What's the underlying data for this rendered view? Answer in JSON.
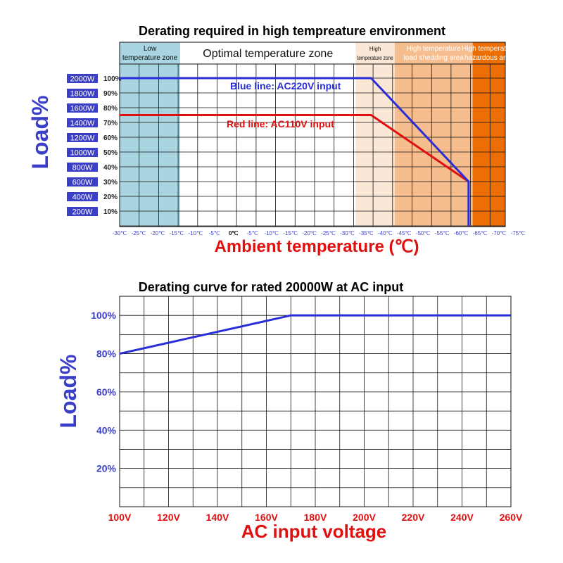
{
  "colors": {
    "blue": "#2a2ed6",
    "red": "#e01010",
    "low_zone": "#a9d5e0",
    "high_zone": "#fbe7d6",
    "shedding_zone": "#f6be8e",
    "hazard_zone": "#ec6e06",
    "watt_badge": "#3b3ec6",
    "ylabel": "#3b3ec6",
    "xtitle_red": "#e01010"
  },
  "chart_data": [
    {
      "type": "line",
      "title": "Derating required in high tempreature environment",
      "xlabel": "Ambient temperature (℃)",
      "ylabel": "Load%",
      "x_tick_labels": [
        "-30℃",
        "-25℃",
        "-20℃",
        "-15℃",
        "-10℃",
        "-5℃",
        "0℃",
        "-5℃",
        "-10℃",
        "-15℃",
        "-20℃",
        "-25℃",
        "-30℃",
        "-35℃",
        "-40℃",
        "-45℃",
        "-50℃",
        "-55℃",
        "-60℃",
        "-65℃",
        "-70℃",
        "-75℃"
      ],
      "y_percent_labels": [
        "100%",
        "90%",
        "80%",
        "70%",
        "60%",
        "50%",
        "40%",
        "30%",
        "20%",
        "10%"
      ],
      "y_watt_labels": [
        "2000W",
        "1800W",
        "1600W",
        "1400W",
        "1200W",
        "1000W",
        "800W",
        "600W",
        "400W",
        "200W"
      ],
      "zones": [
        {
          "label_line1": "Low",
          "label_line2": "temperature zone",
          "from_index": 0,
          "to_index": 3
        },
        {
          "label_line1": "Optimal temperature zone",
          "label_line2": "",
          "from_index": 3,
          "to_index": 12
        },
        {
          "label_line1": "High",
          "label_line2": "temperature zone",
          "from_index": 12,
          "to_index": 14
        },
        {
          "label_line1": "High temperature",
          "label_line2": "load shedding area",
          "from_index": 14,
          "to_index": 18
        },
        {
          "label_line1": "High temperature",
          "label_line2": "hazardous area",
          "from_index": 18,
          "to_index": 21
        }
      ],
      "series": [
        {
          "name": "Blue  line: AC220V input",
          "points": [
            [
              0,
              100
            ],
            [
              12.9,
              100
            ],
            [
              17.9,
              30
            ],
            [
              17.9,
              0
            ]
          ]
        },
        {
          "name": "Red line: AC110V input",
          "points": [
            [
              0,
              75
            ],
            [
              12.9,
              75
            ],
            [
              17.9,
              30
            ]
          ]
        }
      ],
      "ylim": [
        0,
        100
      ],
      "grid": true
    },
    {
      "type": "line",
      "title": "Derating curve for rated 20000W at AC input",
      "xlabel": "AC input voltage",
      "ylabel": "Load%",
      "x_tick_labels": [
        "100V",
        "120V",
        "140V",
        "160V",
        "180V",
        "200V",
        "220V",
        "240V",
        "260V"
      ],
      "y_tick_labels": [
        "100%",
        "80%",
        "60%",
        "40%",
        "20%"
      ],
      "xlim": [
        100,
        260
      ],
      "ylim": [
        0,
        110
      ],
      "series": [
        {
          "points": [
            [
              100,
              80
            ],
            [
              170,
              100
            ],
            [
              260,
              100
            ]
          ]
        }
      ],
      "grid": true
    }
  ]
}
